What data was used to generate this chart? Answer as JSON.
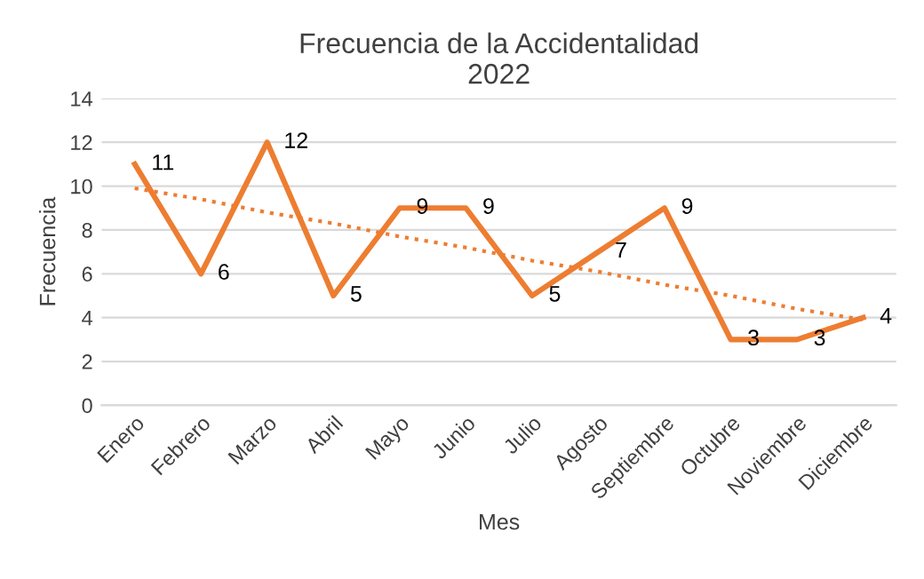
{
  "chart_data": {
    "type": "line",
    "title": "Frecuencia de la Accidentalidad\n2022",
    "xlabel": "Mes",
    "ylabel": "Frecuencia",
    "categories": [
      "Enero",
      "Febrero",
      "Marzo",
      "Abril",
      "Mayo",
      "Junio",
      "Julio",
      "Agosto",
      "Septiembre",
      "Octubre",
      "Noviembre",
      "Diciembre"
    ],
    "series": [
      {
        "color": "#ed7d31",
        "values": [
          11,
          6,
          12,
          5,
          9,
          9,
          5,
          7,
          9,
          3,
          3,
          4
        ],
        "value_labels": [
          "11",
          "6",
          "12",
          "5",
          "9",
          "9",
          "5",
          "7",
          "9",
          "3",
          "3",
          "4"
        ],
        "line_style": "solid"
      },
      {
        "color": "#ed7d31",
        "values": [
          9.9,
          9.4,
          8.8,
          8.3,
          7.7,
          7.2,
          6.6,
          6.1,
          5.5,
          5.0,
          4.4,
          3.9
        ],
        "line_style": "dotted"
      }
    ],
    "ylim": [
      0,
      14
    ],
    "yticks": [
      0,
      2,
      4,
      6,
      8,
      10,
      12,
      14
    ],
    "grid": "y",
    "legend": false,
    "marker": "none"
  }
}
